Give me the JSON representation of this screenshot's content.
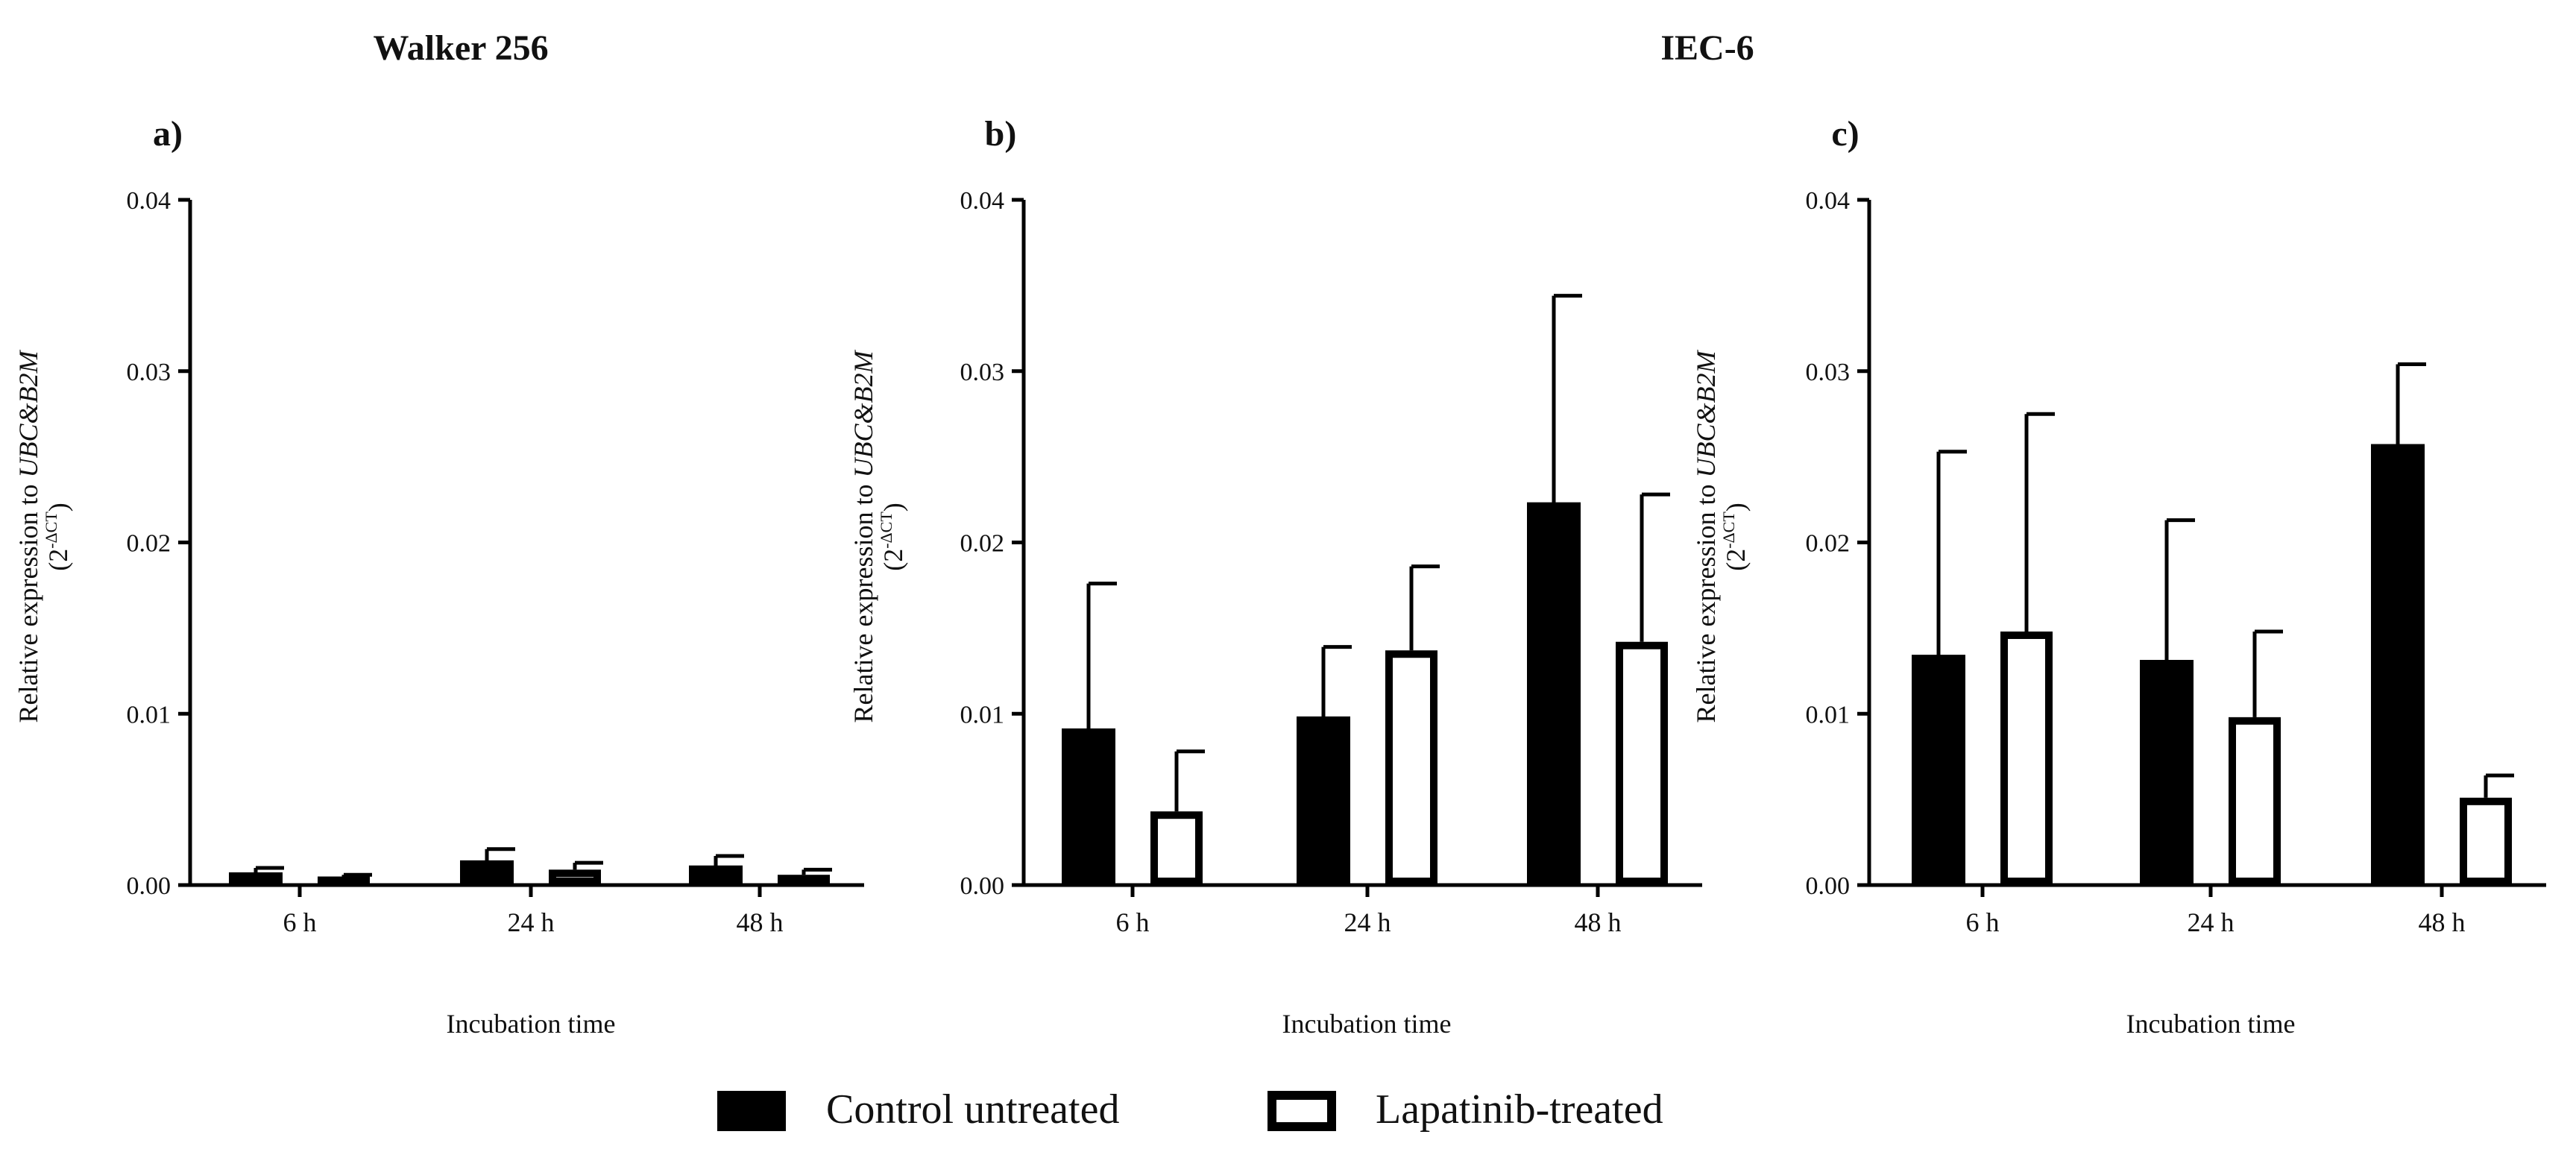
{
  "headers": {
    "left": "Walker 256",
    "right": "IEC-6"
  },
  "legend": {
    "control": "Control untreated",
    "lapatinib": "Lapatinib-treated"
  },
  "colors": {
    "control": "#000000",
    "lapatinib": "#ffffff",
    "axis": "#000000",
    "text": "#111111"
  },
  "chart_data": [
    {
      "type": "bar",
      "panel": "a)",
      "cell_line": "Walker 256",
      "categories": [
        "6 h",
        "24 h",
        "48 h"
      ],
      "series": [
        {
          "name": "Control untreated",
          "values": [
            0.0007,
            0.0014,
            0.0011
          ],
          "errors": [
            0.0003,
            0.0007,
            0.0006
          ]
        },
        {
          "name": "Lapatinib-treated",
          "values": [
            0.0005,
            0.0009,
            0.0006
          ],
          "errors": [
            0.0001,
            0.0004,
            0.0003
          ]
        }
      ],
      "xlabel": "Incubation time",
      "ylabel_main": "Relative expression to ",
      "ylabel_genes": "UBC&B2M",
      "ylabel_unit_base": "(2",
      "ylabel_unit_sup": "-ΔCT",
      "ylabel_unit_close": ")",
      "ylim": [
        0,
        0.04
      ],
      "yticks": [
        "0.00",
        "0.01",
        "0.02",
        "0.03",
        "0.04"
      ]
    },
    {
      "type": "bar",
      "panel": "b)",
      "cell_line": "IEC-6",
      "categories": [
        "6 h",
        "24 h",
        "48 h"
      ],
      "series": [
        {
          "name": "Control untreated",
          "values": [
            0.0091,
            0.0098,
            0.0223
          ],
          "errors": [
            0.0085,
            0.0041,
            0.0121
          ]
        },
        {
          "name": "Lapatinib-treated",
          "values": [
            0.0043,
            0.0137,
            0.0142
          ],
          "errors": [
            0.0035,
            0.0049,
            0.0086
          ]
        }
      ],
      "xlabel": "Incubation time",
      "ylabel_main": "Relative expression to ",
      "ylabel_genes": "UBC&B2M",
      "ylabel_unit_base": "(2",
      "ylabel_unit_sup": "-ΔCT",
      "ylabel_unit_close": ")",
      "ylim": [
        0,
        0.04
      ],
      "yticks": [
        "0.00",
        "0.01",
        "0.02",
        "0.03",
        "0.04"
      ]
    },
    {
      "type": "bar",
      "panel": "c)",
      "cell_line": "IEC-6",
      "categories": [
        "6 h",
        "24 h",
        "48 h"
      ],
      "series": [
        {
          "name": "Control untreated",
          "values": [
            0.0134,
            0.0131,
            0.0257
          ],
          "errors": [
            0.0119,
            0.0082,
            0.0047
          ]
        },
        {
          "name": "Lapatinib-treated",
          "values": [
            0.0148,
            0.0098,
            0.0051
          ],
          "errors": [
            0.0127,
            0.005,
            0.0013
          ]
        }
      ],
      "xlabel": "Incubation time",
      "ylabel_main": "Relative expression to ",
      "ylabel_genes": "UBC&B2M",
      "ylabel_unit_base": "(2",
      "ylabel_unit_sup": "-ΔCT",
      "ylabel_unit_close": ")",
      "ylim": [
        0,
        0.04
      ],
      "yticks": [
        "0.00",
        "0.01",
        "0.02",
        "0.03",
        "0.04"
      ]
    }
  ]
}
